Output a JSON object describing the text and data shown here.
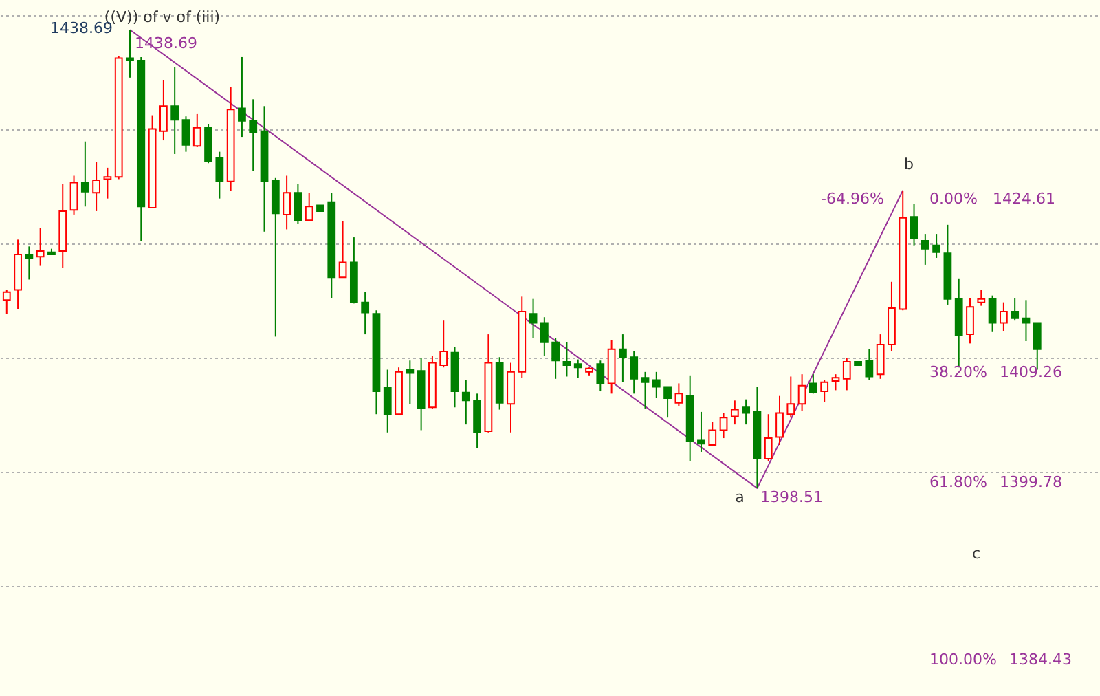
{
  "chart_data": {
    "type": "candlestick",
    "categories": [
      null,
      null,
      null,
      null,
      null,
      null,
      null,
      null,
      null,
      null,
      null,
      null,
      null,
      null,
      null,
      null,
      null,
      null,
      null,
      null,
      null,
      null,
      null,
      null,
      null,
      null,
      null,
      null,
      null,
      null,
      null,
      null,
      null,
      null,
      null,
      null,
      null,
      null,
      null,
      null,
      null,
      null,
      null,
      null,
      null,
      null,
      null,
      null,
      null,
      null,
      null,
      null,
      null,
      null,
      null,
      null,
      null,
      null,
      null,
      null,
      null,
      null,
      null,
      null,
      null,
      null,
      null,
      null,
      null,
      null,
      null,
      null,
      null,
      null,
      null,
      null,
      null,
      null,
      null,
      null,
      null,
      null,
      null,
      null,
      null,
      null,
      null,
      null,
      null,
      null,
      null,
      null,
      null
    ],
    "ohlc": [
      [
        1415.0,
        1415.9,
        1413.8,
        1415.7
      ],
      [
        1415.9,
        1420.3,
        1414.2,
        1419.0
      ],
      [
        1419.0,
        1419.7,
        1416.8,
        1418.7
      ],
      [
        1418.8,
        1421.3,
        1418.0,
        1419.3
      ],
      [
        1419.2,
        1419.5,
        1419.0,
        1419.0
      ],
      [
        1419.3,
        1425.2,
        1417.8,
        1422.8
      ],
      [
        1422.9,
        1425.9,
        1422.5,
        1425.3
      ],
      [
        1425.3,
        1428.9,
        1423.2,
        1424.5
      ],
      [
        1424.4,
        1427.1,
        1422.8,
        1425.5
      ],
      [
        1425.6,
        1426.6,
        1423.9,
        1425.8
      ],
      [
        1425.8,
        1436.4,
        1425.6,
        1436.2
      ],
      [
        1436.2,
        1438.69,
        1434.5,
        1436.0
      ],
      [
        1436.0,
        1436.3,
        1420.2,
        1423.2
      ],
      [
        1423.1,
        1431.2,
        1423.1,
        1430.0
      ],
      [
        1429.8,
        1434.3,
        1429.0,
        1432.0
      ],
      [
        1432.0,
        1435.4,
        1427.8,
        1430.8
      ],
      [
        1430.8,
        1431.1,
        1428.0,
        1428.6
      ],
      [
        1428.5,
        1431.3,
        1428.4,
        1430.1
      ],
      [
        1430.1,
        1430.4,
        1427.0,
        1427.2
      ],
      [
        1427.5,
        1428.0,
        1423.9,
        1425.4
      ],
      [
        1425.4,
        1433.7,
        1424.6,
        1431.7
      ],
      [
        1431.8,
        1436.3,
        1429.3,
        1430.7
      ],
      [
        1430.7,
        1432.6,
        1426.3,
        1429.7
      ],
      [
        1429.8,
        1432.0,
        1421.0,
        1425.4
      ],
      [
        1425.5,
        1425.7,
        1411.8,
        1422.6
      ],
      [
        1422.5,
        1425.9,
        1421.2,
        1424.4
      ],
      [
        1424.4,
        1425.2,
        1421.7,
        1422.0
      ],
      [
        1422.0,
        1424.4,
        1421.9,
        1423.2
      ],
      [
        1423.3,
        1423.3,
        1422.8,
        1422.8
      ],
      [
        1423.6,
        1424.4,
        1415.2,
        1417.0
      ],
      [
        1417.0,
        1421.9,
        1417.0,
        1418.3
      ],
      [
        1418.3,
        1420.5,
        1414.7,
        1414.8
      ],
      [
        1414.8,
        1415.7,
        1412.0,
        1413.9
      ],
      [
        1413.8,
        1414.1,
        1405.0,
        1407.0
      ],
      [
        1407.3,
        1408.9,
        1403.4,
        1405.0
      ],
      [
        1405.0,
        1409.1,
        1404.9,
        1408.7
      ],
      [
        1408.9,
        1409.7,
        1405.9,
        1408.6
      ],
      [
        1408.8,
        1409.9,
        1403.6,
        1405.5
      ],
      [
        1405.6,
        1410.1,
        1405.5,
        1409.5
      ],
      [
        1409.3,
        1413.2,
        1409.1,
        1410.5
      ],
      [
        1410.4,
        1410.9,
        1405.6,
        1407.0
      ],
      [
        1406.9,
        1408.0,
        1404.1,
        1406.2
      ],
      [
        1406.2,
        1406.8,
        1402.0,
        1403.4
      ],
      [
        1403.5,
        1412.0,
        1403.4,
        1409.5
      ],
      [
        1409.5,
        1410.0,
        1405.4,
        1406.0
      ],
      [
        1405.9,
        1409.5,
        1403.4,
        1408.7
      ],
      [
        1408.7,
        1415.3,
        1408.2,
        1414.0
      ],
      [
        1413.8,
        1415.1,
        1411.7,
        1413.0
      ],
      [
        1413.0,
        1413.5,
        1410.1,
        1411.3
      ],
      [
        1411.3,
        1411.7,
        1408.1,
        1409.7
      ],
      [
        1409.6,
        1411.3,
        1408.3,
        1409.3
      ],
      [
        1409.4,
        1409.8,
        1408.2,
        1409.1
      ],
      [
        1408.7,
        1409.1,
        1408.4,
        1409.0
      ],
      [
        1409.4,
        1409.7,
        1407.0,
        1407.7
      ],
      [
        1407.7,
        1411.5,
        1406.8,
        1410.7
      ],
      [
        1410.7,
        1412.0,
        1407.8,
        1410.0
      ],
      [
        1410.0,
        1410.5,
        1406.8,
        1408.1
      ],
      [
        1408.2,
        1408.7,
        1405.5,
        1407.8
      ],
      [
        1408.0,
        1408.7,
        1406.4,
        1407.4
      ],
      [
        1407.4,
        1407.4,
        1404.7,
        1406.4
      ],
      [
        1406.0,
        1407.7,
        1405.7,
        1406.8
      ],
      [
        1406.6,
        1408.4,
        1400.9,
        1402.6
      ],
      [
        1402.7,
        1405.2,
        1401.7,
        1402.4
      ],
      [
        1402.3,
        1404.3,
        1402.2,
        1403.6
      ],
      [
        1403.6,
        1405.1,
        1402.9,
        1404.7
      ],
      [
        1404.8,
        1406.2,
        1404.1,
        1405.4
      ],
      [
        1405.6,
        1406.3,
        1404.1,
        1405.1
      ],
      [
        1405.2,
        1407.4,
        1398.51,
        1401.1
      ],
      [
        1401.1,
        1405.0,
        1400.9,
        1402.9
      ],
      [
        1403.0,
        1406.6,
        1402.3,
        1405.1
      ],
      [
        1405.0,
        1408.3,
        1404.7,
        1405.9
      ],
      [
        1405.9,
        1408.5,
        1405.3,
        1407.5
      ],
      [
        1407.7,
        1408.5,
        1406.8,
        1406.9
      ],
      [
        1407.0,
        1408.0,
        1406.1,
        1407.8
      ],
      [
        1407.9,
        1408.5,
        1407.1,
        1408.2
      ],
      [
        1408.1,
        1409.9,
        1407.1,
        1409.6
      ],
      [
        1409.6,
        1409.6,
        1409.3,
        1409.3
      ],
      [
        1409.7,
        1410.7,
        1408.0,
        1408.3
      ],
      [
        1408.5,
        1412.0,
        1408.1,
        1411.1
      ],
      [
        1411.1,
        1416.6,
        1410.5,
        1414.3
      ],
      [
        1414.2,
        1424.61,
        1414.1,
        1422.2
      ],
      [
        1422.3,
        1423.4,
        1419.8,
        1420.4
      ],
      [
        1420.2,
        1420.8,
        1418.1,
        1419.5
      ],
      [
        1419.8,
        1420.8,
        1418.7,
        1419.2
      ],
      [
        1419.1,
        1421.6,
        1414.6,
        1415.1
      ],
      [
        1415.1,
        1416.9,
        1409.1,
        1411.9
      ],
      [
        1412.0,
        1415.2,
        1411.2,
        1414.4
      ],
      [
        1414.8,
        1415.9,
        1414.5,
        1415.1
      ],
      [
        1415.1,
        1415.4,
        1412.2,
        1413.0
      ],
      [
        1413.0,
        1414.8,
        1412.3,
        1414.0
      ],
      [
        1414.0,
        1415.2,
        1413.2,
        1413.4
      ],
      [
        1413.4,
        1415.0,
        1411.4,
        1413.0
      ],
      [
        1413.0,
        1413.0,
        1408.9,
        1410.7
      ]
    ],
    "colors": [
      "#ff0000",
      "#ff0000",
      "#008000",
      "#ff0000",
      "#008000",
      "#ff0000",
      "#ff0000",
      "#008000",
      "#ff0000",
      "#ff0000",
      "#ff0000",
      "#008000",
      "#008000",
      "#ff0000",
      "#ff0000",
      "#008000",
      "#008000",
      "#ff0000",
      "#008000",
      "#008000",
      "#ff0000",
      "#008000",
      "#008000",
      "#008000",
      "#008000",
      "#ff0000",
      "#008000",
      "#ff0000",
      "#008000",
      "#008000",
      "#ff0000",
      "#008000",
      "#008000",
      "#008000",
      "#008000",
      "#ff0000",
      "#008000",
      "#008000",
      "#ff0000",
      "#ff0000",
      "#008000",
      "#008000",
      "#008000",
      "#ff0000",
      "#008000",
      "#ff0000",
      "#ff0000",
      "#008000",
      "#008000",
      "#008000",
      "#008000",
      "#008000",
      "#ff0000",
      "#008000",
      "#ff0000",
      "#008000",
      "#008000",
      "#008000",
      "#008000",
      "#008000",
      "#ff0000",
      "#008000",
      "#008000",
      "#ff0000",
      "#ff0000",
      "#ff0000",
      "#008000",
      "#008000",
      "#ff0000",
      "#ff0000",
      "#ff0000",
      "#ff0000",
      "#008000",
      "#ff0000",
      "#ff0000",
      "#ff0000",
      "#008000",
      "#008000",
      "#ff0000",
      "#ff0000",
      "#ff0000",
      "#008000",
      "#008000",
      "#008000",
      "#008000",
      "#008000",
      "#ff0000",
      "#ff0000",
      "#008000",
      "#ff0000",
      "#008000",
      "#008000",
      "#008000"
    ],
    "series": [
      {
        "type": "line",
        "color": "#993399",
        "values": [
          null,
          null,
          null,
          null,
          null,
          null,
          null,
          null,
          null,
          null,
          null,
          1438.69,
          null,
          null,
          null,
          null,
          null,
          null,
          null,
          null,
          null,
          null,
          null,
          null,
          null,
          null,
          null,
          null,
          null,
          null,
          null,
          null,
          null,
          null,
          null,
          null,
          null,
          null,
          null,
          null,
          null,
          null,
          null,
          null,
          null,
          null,
          null,
          null,
          null,
          null,
          null,
          null,
          null,
          null,
          null,
          null,
          null,
          null,
          null,
          null,
          null,
          null,
          null,
          null,
          null,
          null,
          null,
          1398.51,
          null,
          null,
          null,
          null,
          null,
          null,
          null,
          null,
          null,
          null,
          null,
          null,
          1424.61,
          null,
          null,
          null,
          null,
          null,
          null,
          null,
          null,
          null,
          null,
          null,
          null
        ]
      }
    ],
    "ylim": [
      1380.3,
      1441.3
    ],
    "yticks": [
      {
        "value": 1390,
        "label": null
      },
      {
        "value": 1400,
        "label": null
      },
      {
        "value": 1410,
        "label": null
      },
      {
        "value": 1420,
        "label": null
      },
      {
        "value": 1430,
        "label": null
      },
      {
        "value": 1440,
        "label": null
      }
    ],
    "grid": "y",
    "annotations": [
      "((V)) of v of (iii)",
      "1438.69",
      "1438.69",
      "a",
      "1398.51",
      "b",
      "-64.96%",
      "c",
      "0.00%",
      "38.20%",
      "61.80%",
      "100.00%",
      "1424.61",
      "1409.26",
      "1399.78",
      "1384.43"
    ]
  }
}
